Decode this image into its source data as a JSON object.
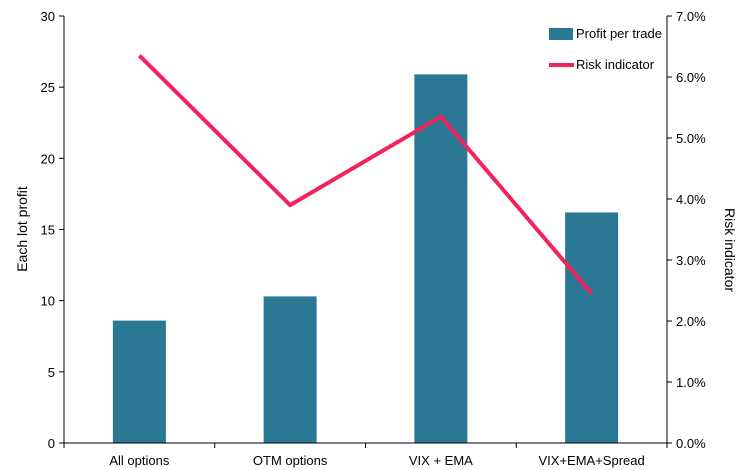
{
  "chart_data": {
    "type": "bar",
    "categories": [
      "All options",
      "OTM options",
      "VIX + EMA",
      "VIX+EMA+Spread"
    ],
    "series": [
      {
        "name": "Profit per trade",
        "kind": "bar",
        "axis": "left",
        "values": [
          8.6,
          10.3,
          25.9,
          16.2
        ],
        "color": "#2b7895"
      },
      {
        "name": "Risk indicator",
        "kind": "line",
        "axis": "right",
        "values": [
          6.35,
          3.9,
          5.35,
          2.45
        ],
        "color": "#f2225a"
      }
    ],
    "ylabel": "Each lot profit",
    "y2label": "Risk indicator",
    "ylim": [
      0,
      30
    ],
    "y2lim": [
      0,
      7
    ],
    "yticks": [
      "0",
      "5",
      "10",
      "15",
      "20",
      "25",
      "30"
    ],
    "y2ticks": [
      "0.0%",
      "1.0%",
      "2.0%",
      "3.0%",
      "4.0%",
      "5.0%",
      "6.0%",
      "7.0%"
    ],
    "grid": false,
    "legend_position": "top-right"
  }
}
